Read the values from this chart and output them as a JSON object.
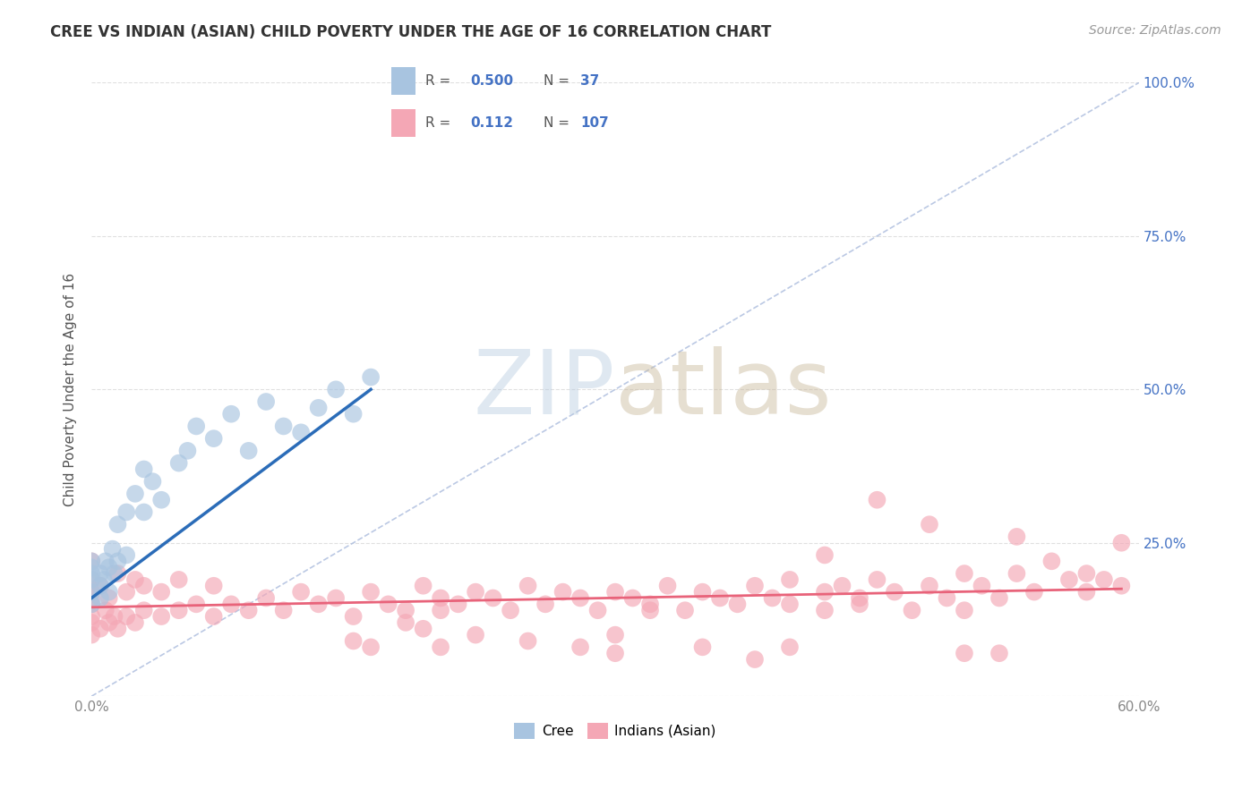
{
  "title": "CREE VS INDIAN (ASIAN) CHILD POVERTY UNDER THE AGE OF 16 CORRELATION CHART",
  "source": "Source: ZipAtlas.com",
  "ylabel": "Child Poverty Under the Age of 16",
  "xlim": [
    0.0,
    0.6
  ],
  "ylim": [
    0.0,
    1.0
  ],
  "xticks": [
    0.0,
    0.1,
    0.2,
    0.3,
    0.4,
    0.5,
    0.6
  ],
  "xticklabels": [
    "0.0%",
    "",
    "",
    "",
    "",
    "",
    "60.0%"
  ],
  "yticks": [
    0.0,
    0.25,
    0.5,
    0.75,
    1.0
  ],
  "left_yticklabels": [
    "",
    "",
    "",
    "",
    ""
  ],
  "right_yticklabels": [
    "",
    "25.0%",
    "50.0%",
    "75.0%",
    "100.0%"
  ],
  "cree_color": "#a8c4e0",
  "indian_color": "#f4a7b5",
  "cree_line_color": "#2b6cb8",
  "indian_line_color": "#e8637a",
  "ref_line_color": "#aabbdd",
  "background_color": "#ffffff",
  "title_color": "#333333",
  "axis_label_color": "#555555",
  "tick_color": "#888888",
  "grid_color": "#e0e0e0",
  "label_color": "#4472c4",
  "cree_scatter_x": [
    0.0,
    0.0,
    0.0,
    0.0,
    0.0,
    0.0,
    0.005,
    0.005,
    0.005,
    0.007,
    0.008,
    0.01,
    0.01,
    0.012,
    0.013,
    0.015,
    0.015,
    0.02,
    0.02,
    0.025,
    0.03,
    0.03,
    0.035,
    0.04,
    0.05,
    0.055,
    0.06,
    0.07,
    0.08,
    0.09,
    0.1,
    0.11,
    0.12,
    0.13,
    0.14,
    0.15,
    0.16
  ],
  "cree_scatter_y": [
    0.15,
    0.19,
    0.2,
    0.21,
    0.22,
    0.17,
    0.16,
    0.18,
    0.2,
    0.19,
    0.22,
    0.17,
    0.21,
    0.24,
    0.2,
    0.22,
    0.28,
    0.23,
    0.3,
    0.33,
    0.3,
    0.37,
    0.35,
    0.32,
    0.38,
    0.4,
    0.44,
    0.42,
    0.46,
    0.4,
    0.48,
    0.44,
    0.43,
    0.47,
    0.5,
    0.46,
    0.52
  ],
  "cree_line_x0": 0.0,
  "cree_line_x1": 0.16,
  "cree_line_y0": 0.16,
  "cree_line_y1": 0.5,
  "indian_scatter_x": [
    0.0,
    0.0,
    0.0,
    0.0,
    0.0,
    0.0,
    0.0,
    0.0,
    0.005,
    0.005,
    0.008,
    0.01,
    0.01,
    0.013,
    0.015,
    0.015,
    0.02,
    0.02,
    0.025,
    0.025,
    0.03,
    0.03,
    0.04,
    0.04,
    0.05,
    0.05,
    0.06,
    0.07,
    0.07,
    0.08,
    0.09,
    0.1,
    0.11,
    0.12,
    0.13,
    0.14,
    0.15,
    0.16,
    0.17,
    0.18,
    0.19,
    0.2,
    0.21,
    0.22,
    0.23,
    0.24,
    0.25,
    0.26,
    0.27,
    0.28,
    0.29,
    0.3,
    0.31,
    0.32,
    0.33,
    0.34,
    0.35,
    0.36,
    0.37,
    0.38,
    0.39,
    0.4,
    0.4,
    0.42,
    0.42,
    0.43,
    0.44,
    0.44,
    0.45,
    0.46,
    0.47,
    0.48,
    0.49,
    0.5,
    0.51,
    0.52,
    0.53,
    0.54,
    0.55,
    0.56,
    0.57,
    0.57,
    0.58,
    0.59,
    0.59,
    0.5,
    0.52,
    0.35,
    0.38,
    0.3,
    0.25,
    0.2,
    0.18,
    0.15,
    0.16,
    0.19,
    0.22,
    0.28,
    0.32,
    0.42,
    0.45,
    0.48,
    0.53,
    0.3,
    0.4,
    0.5,
    0.2
  ],
  "indian_scatter_y": [
    0.1,
    0.13,
    0.15,
    0.17,
    0.19,
    0.22,
    0.16,
    0.12,
    0.11,
    0.18,
    0.14,
    0.12,
    0.16,
    0.13,
    0.11,
    0.2,
    0.13,
    0.17,
    0.12,
    0.19,
    0.14,
    0.18,
    0.13,
    0.17,
    0.14,
    0.19,
    0.15,
    0.13,
    0.18,
    0.15,
    0.14,
    0.16,
    0.14,
    0.17,
    0.15,
    0.16,
    0.13,
    0.17,
    0.15,
    0.14,
    0.18,
    0.16,
    0.15,
    0.17,
    0.16,
    0.14,
    0.18,
    0.15,
    0.17,
    0.16,
    0.14,
    0.17,
    0.16,
    0.15,
    0.18,
    0.14,
    0.17,
    0.16,
    0.15,
    0.18,
    0.16,
    0.15,
    0.19,
    0.17,
    0.14,
    0.18,
    0.16,
    0.15,
    0.19,
    0.17,
    0.14,
    0.18,
    0.16,
    0.2,
    0.18,
    0.16,
    0.2,
    0.17,
    0.22,
    0.19,
    0.17,
    0.2,
    0.19,
    0.25,
    0.18,
    0.14,
    0.07,
    0.08,
    0.06,
    0.1,
    0.09,
    0.08,
    0.12,
    0.09,
    0.08,
    0.11,
    0.1,
    0.08,
    0.14,
    0.23,
    0.32,
    0.28,
    0.26,
    0.07,
    0.08,
    0.07,
    0.14
  ],
  "indian_line_x0": 0.0,
  "indian_line_x1": 0.59,
  "indian_line_y0": 0.145,
  "indian_line_y1": 0.175
}
